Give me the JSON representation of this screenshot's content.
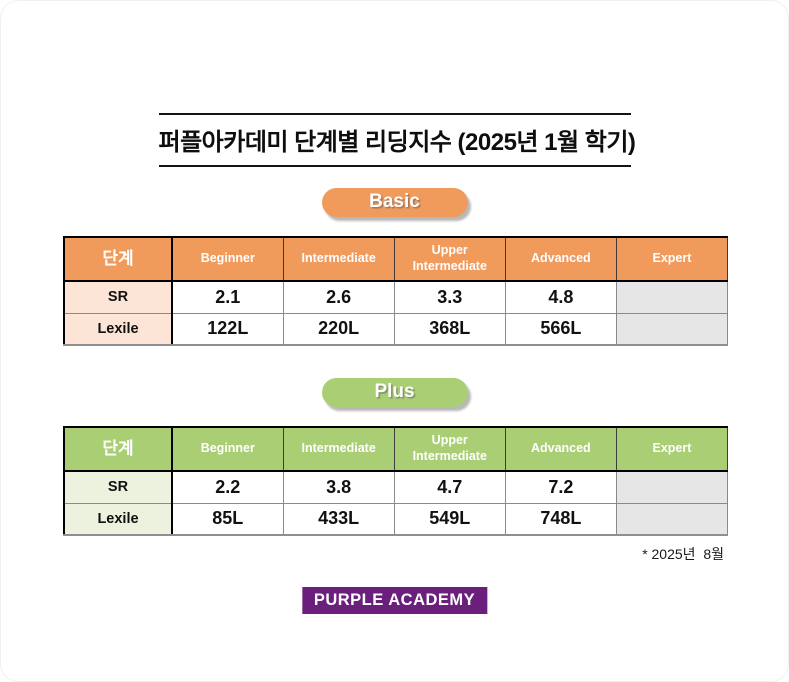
{
  "page": {
    "title": "퍼플아카데미 단계별 리딩지수 (2025년 1월 학기)",
    "footnote": "* 2025년  8월",
    "logo_text": "PURPLE ACADEMY"
  },
  "colors": {
    "empty_cell_bg": "#E7E6E6",
    "logo_bg": "#6B1F7C",
    "title_rule": "#141414"
  },
  "sections": [
    {
      "id": "basic",
      "badge_label": "Basic",
      "accent_color": "#F09A5C",
      "label_bg_color": "#FCE4D6",
      "table": {
        "level_column_header": "단계",
        "columns": [
          "Beginner",
          "Intermediate",
          "Upper Intermediate",
          "Advanced",
          "Expert"
        ],
        "rows": [
          {
            "label": "SR",
            "values": [
              "2.1",
              "2.6",
              "3.3",
              "4.8",
              ""
            ]
          },
          {
            "label": "Lexile",
            "values": [
              "122L",
              "220L",
              "368L",
              "566L",
              ""
            ]
          }
        ]
      }
    },
    {
      "id": "plus",
      "badge_label": "Plus",
      "accent_color": "#A9CE74",
      "label_bg_color": "#EDF2DF",
      "table": {
        "level_column_header": "단계",
        "columns": [
          "Beginner",
          "Intermediate",
          "Upper Intermediate",
          "Advanced",
          "Expert"
        ],
        "rows": [
          {
            "label": "SR",
            "values": [
              "2.2",
              "3.8",
              "4.7",
              "7.2",
              ""
            ]
          },
          {
            "label": "Lexile",
            "values": [
              "85L",
              "433L",
              "549L",
              "748L",
              ""
            ]
          }
        ]
      }
    }
  ]
}
